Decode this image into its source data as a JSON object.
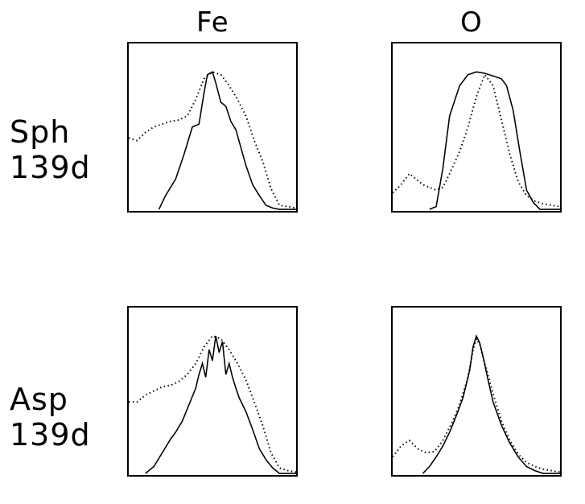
{
  "columns": [
    "Fe",
    "O"
  ],
  "rows": [
    {
      "label_line1": "Sph",
      "label_line2": "139d"
    },
    {
      "label_line1": "Asp",
      "label_line2": "139d"
    }
  ],
  "colors": {
    "line": "#000000",
    "background": "#ffffff"
  },
  "chart_data": [
    {
      "type": "line",
      "grid": false,
      "series": [
        {
          "style": "solid",
          "x": [
            0.0,
            0.18,
            0.22,
            0.28,
            0.33,
            0.38,
            0.42,
            0.45,
            0.47,
            0.5,
            0.52,
            0.55,
            0.58,
            0.61,
            0.64,
            0.67,
            0.7,
            0.74,
            0.78,
            0.82,
            0.86,
            0.9,
            1.0
          ],
          "y": [
            null,
            0.0,
            0.1,
            0.22,
            0.4,
            0.6,
            0.62,
            0.85,
            0.98,
            1.0,
            0.92,
            0.78,
            0.75,
            0.64,
            0.58,
            0.45,
            0.32,
            0.18,
            0.1,
            0.03,
            0.01,
            0.0,
            0.0
          ]
        },
        {
          "style": "dotted",
          "x": [
            0.0,
            0.05,
            0.1,
            0.15,
            0.2,
            0.25,
            0.3,
            0.35,
            0.4,
            0.45,
            0.5,
            0.55,
            0.6,
            0.65,
            0.7,
            0.75,
            0.8,
            0.85,
            0.9,
            0.95,
            1.0
          ],
          "y": [
            0.52,
            0.5,
            0.56,
            0.6,
            0.62,
            0.64,
            0.65,
            0.68,
            0.8,
            0.95,
            1.0,
            0.98,
            0.9,
            0.8,
            0.68,
            0.5,
            0.35,
            0.15,
            0.03,
            0.02,
            0.01
          ]
        }
      ]
    },
    {
      "type": "line",
      "grid": false,
      "series": [
        {
          "style": "solid",
          "x": [
            0.0,
            0.1,
            0.18,
            0.22,
            0.26,
            0.3,
            0.34,
            0.4,
            0.45,
            0.5,
            0.55,
            0.6,
            0.65,
            0.68,
            0.72,
            0.76,
            0.8,
            0.84,
            0.88,
            1.0
          ],
          "y": [
            null,
            null,
            null,
            0.0,
            0.02,
            0.3,
            0.68,
            0.9,
            0.98,
            1.0,
            0.99,
            0.97,
            0.95,
            0.9,
            0.72,
            0.42,
            0.14,
            0.05,
            0.0,
            0.0
          ]
        },
        {
          "style": "dotted",
          "x": [
            0.0,
            0.05,
            0.1,
            0.14,
            0.18,
            0.22,
            0.26,
            0.3,
            0.34,
            0.4,
            0.45,
            0.5,
            0.55,
            0.6,
            0.65,
            0.7,
            0.75,
            0.8,
            0.85,
            0.9,
            0.95,
            1.0
          ],
          "y": [
            0.12,
            0.18,
            0.26,
            0.22,
            0.18,
            0.16,
            0.14,
            0.16,
            0.26,
            0.42,
            0.6,
            0.82,
            0.98,
            0.9,
            0.65,
            0.4,
            0.2,
            0.1,
            0.06,
            0.04,
            0.03,
            0.02
          ]
        }
      ]
    },
    {
      "type": "line",
      "grid": false,
      "series": [
        {
          "style": "solid",
          "x": [
            0.0,
            0.1,
            0.15,
            0.2,
            0.25,
            0.28,
            0.32,
            0.36,
            0.4,
            0.42,
            0.44,
            0.46,
            0.48,
            0.5,
            0.52,
            0.54,
            0.56,
            0.58,
            0.6,
            0.62,
            0.64,
            0.66,
            0.7,
            0.74,
            0.78,
            0.82,
            0.86,
            0.9,
            1.0
          ],
          "y": [
            null,
            0.0,
            0.05,
            0.15,
            0.25,
            0.3,
            0.38,
            0.5,
            0.62,
            0.72,
            0.8,
            0.7,
            0.9,
            0.82,
            1.0,
            0.88,
            0.96,
            0.72,
            0.8,
            0.7,
            0.62,
            0.55,
            0.45,
            0.32,
            0.18,
            0.1,
            0.04,
            0.0,
            0.0
          ]
        },
        {
          "style": "dotted",
          "x": [
            0.0,
            0.05,
            0.1,
            0.15,
            0.2,
            0.25,
            0.3,
            0.35,
            0.4,
            0.45,
            0.5,
            0.55,
            0.6,
            0.65,
            0.7,
            0.75,
            0.8,
            0.85,
            0.9,
            0.95,
            1.0
          ],
          "y": [
            0.52,
            0.52,
            0.57,
            0.6,
            0.63,
            0.64,
            0.67,
            0.72,
            0.8,
            0.92,
            1.0,
            0.98,
            0.9,
            0.8,
            0.68,
            0.52,
            0.35,
            0.15,
            0.04,
            0.02,
            0.01
          ]
        }
      ]
    },
    {
      "type": "line",
      "grid": false,
      "series": [
        {
          "style": "solid",
          "x": [
            0.0,
            0.15,
            0.18,
            0.22,
            0.26,
            0.3,
            0.34,
            0.38,
            0.42,
            0.46,
            0.48,
            0.5,
            0.52,
            0.54,
            0.57,
            0.6,
            0.65,
            0.7,
            0.75,
            0.8,
            0.85,
            0.9,
            1.0
          ],
          "y": [
            null,
            null,
            0.0,
            0.05,
            0.12,
            0.2,
            0.3,
            0.42,
            0.55,
            0.75,
            0.92,
            1.0,
            0.95,
            0.85,
            0.68,
            0.52,
            0.35,
            0.22,
            0.12,
            0.05,
            0.02,
            0.0,
            0.0
          ]
        },
        {
          "style": "dotted",
          "x": [
            0.0,
            0.05,
            0.1,
            0.15,
            0.2,
            0.25,
            0.3,
            0.35,
            0.4,
            0.45,
            0.48,
            0.5,
            0.52,
            0.55,
            0.6,
            0.65,
            0.7,
            0.75,
            0.8,
            0.85,
            0.9,
            0.95,
            1.0
          ],
          "y": [
            0.12,
            0.2,
            0.24,
            0.18,
            0.15,
            0.16,
            0.24,
            0.36,
            0.5,
            0.7,
            0.9,
            0.98,
            0.94,
            0.8,
            0.58,
            0.38,
            0.24,
            0.14,
            0.08,
            0.05,
            0.03,
            0.02,
            0.01
          ]
        }
      ]
    }
  ]
}
